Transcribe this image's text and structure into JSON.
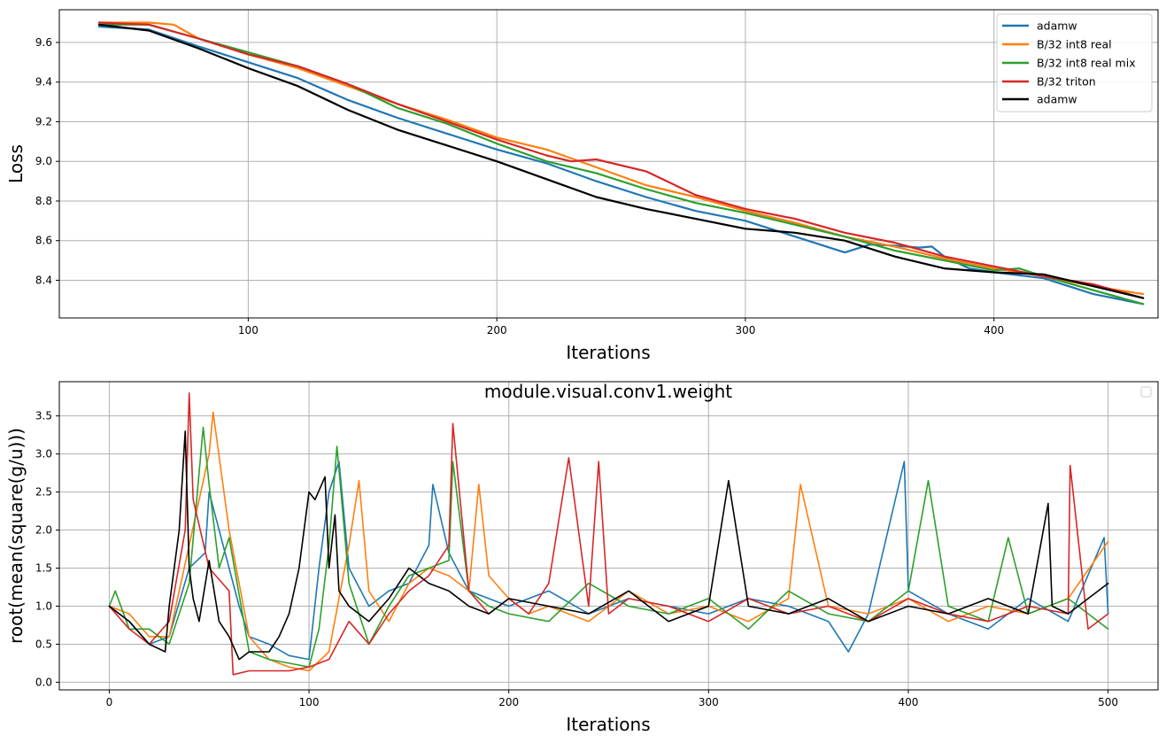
{
  "chart_data": [
    {
      "type": "line",
      "title": "",
      "xlabel": "Iterations",
      "ylabel": "Loss",
      "xlim": [
        24,
        466
      ],
      "ylim": [
        8.21,
        9.765
      ],
      "xticks": [
        100,
        200,
        300,
        400
      ],
      "yticks": [
        8.4,
        8.6,
        8.8,
        9.0,
        9.2,
        9.4,
        9.6
      ],
      "xtick_labels": [
        "100",
        "200",
        "300",
        "400"
      ],
      "ytick_labels": [
        "8.4",
        "8.6",
        "8.8",
        "9.0",
        "9.2",
        "9.4",
        "9.6"
      ],
      "grid": true,
      "legend": "top-right",
      "series": [
        {
          "name": "adamw",
          "color": "#1f77b4",
          "x": [
            40,
            60,
            80,
            100,
            120,
            140,
            160,
            180,
            200,
            220,
            240,
            260,
            280,
            300,
            320,
            340,
            350,
            360,
            370,
            375,
            380,
            390,
            400,
            420,
            440,
            460
          ],
          "y": [
            9.68,
            9.665,
            9.58,
            9.5,
            9.42,
            9.31,
            9.22,
            9.14,
            9.06,
            8.99,
            8.9,
            8.82,
            8.75,
            8.7,
            8.62,
            8.54,
            8.58,
            8.575,
            8.565,
            8.57,
            8.52,
            8.46,
            8.44,
            8.41,
            8.33,
            8.28
          ]
        },
        {
          "name": "B/32 int8 real",
          "color": "#ff7f0e",
          "x": [
            40,
            60,
            70,
            80,
            100,
            120,
            140,
            160,
            180,
            200,
            220,
            240,
            260,
            280,
            300,
            320,
            340,
            360,
            380,
            400,
            420,
            440,
            460
          ],
          "y": [
            9.7,
            9.7,
            9.69,
            9.62,
            9.54,
            9.47,
            9.38,
            9.29,
            9.21,
            9.12,
            9.06,
            8.97,
            8.88,
            8.82,
            8.75,
            8.69,
            8.62,
            8.57,
            8.51,
            8.46,
            8.42,
            8.37,
            8.33
          ]
        },
        {
          "name": "B/32 int8 real mix",
          "color": "#2ca02c",
          "x": [
            40,
            60,
            80,
            100,
            120,
            140,
            160,
            180,
            200,
            220,
            240,
            260,
            280,
            300,
            320,
            340,
            360,
            380,
            400,
            410,
            420,
            440,
            460
          ],
          "y": [
            9.69,
            9.69,
            9.62,
            9.55,
            9.48,
            9.39,
            9.27,
            9.19,
            9.09,
            9.0,
            8.94,
            8.86,
            8.79,
            8.74,
            8.68,
            8.62,
            8.55,
            8.5,
            8.45,
            8.46,
            8.42,
            8.35,
            8.28
          ]
        },
        {
          "name": "B/32 triton",
          "color": "#d62728",
          "x": [
            40,
            60,
            80,
            100,
            120,
            140,
            160,
            180,
            200,
            220,
            230,
            240,
            260,
            270,
            280,
            300,
            320,
            340,
            360,
            380,
            400,
            420,
            440,
            460
          ],
          "y": [
            9.7,
            9.69,
            9.62,
            9.54,
            9.48,
            9.39,
            9.29,
            9.2,
            9.11,
            9.03,
            9.0,
            9.01,
            8.95,
            8.89,
            8.83,
            8.76,
            8.71,
            8.64,
            8.59,
            8.52,
            8.47,
            8.42,
            8.38,
            8.31
          ]
        },
        {
          "name": "adamw",
          "color": "#000000",
          "x": [
            40,
            60,
            80,
            100,
            120,
            140,
            160,
            180,
            200,
            220,
            240,
            260,
            280,
            300,
            320,
            340,
            360,
            380,
            400,
            420,
            440,
            460
          ],
          "y": [
            9.69,
            9.66,
            9.57,
            9.47,
            9.38,
            9.26,
            9.16,
            9.08,
            9.0,
            8.91,
            8.82,
            8.76,
            8.71,
            8.66,
            8.64,
            8.6,
            8.52,
            8.46,
            8.44,
            8.43,
            8.37,
            8.31
          ]
        }
      ]
    },
    {
      "type": "line",
      "title": "module.visual.conv1.weight",
      "xlabel": "Iterations",
      "ylabel": "root(mean(square(g/u)))",
      "xlim": [
        -25,
        525
      ],
      "ylim": [
        -0.1,
        3.95
      ],
      "xticks": [
        0,
        100,
        200,
        300,
        400,
        500
      ],
      "yticks": [
        0.0,
        0.5,
        1.0,
        1.5,
        2.0,
        2.5,
        3.0,
        3.5
      ],
      "xtick_labels": [
        "0",
        "100",
        "200",
        "300",
        "400",
        "500"
      ],
      "ytick_labels": [
        "0.0",
        "0.5",
        "1.0",
        "1.5",
        "2.0",
        "2.5",
        "3.0",
        "3.5"
      ],
      "grid": true,
      "legend": "top-right (empty)",
      "series": [
        {
          "name": "",
          "color": "#1f77b4",
          "x": [
            0,
            10,
            20,
            30,
            40,
            48,
            50,
            55,
            60,
            65,
            70,
            80,
            90,
            100,
            105,
            110,
            115,
            120,
            130,
            140,
            150,
            160,
            162,
            170,
            180,
            190,
            200,
            220,
            240,
            260,
            280,
            300,
            320,
            340,
            360,
            370,
            380,
            398,
            400,
            420,
            440,
            460,
            480,
            498,
            500
          ],
          "y": [
            1.0,
            0.8,
            0.5,
            0.6,
            1.5,
            1.7,
            2.5,
            2.0,
            1.5,
            1.0,
            0.6,
            0.5,
            0.35,
            0.3,
            1.5,
            2.5,
            2.9,
            1.5,
            1.0,
            1.2,
            1.3,
            1.8,
            2.6,
            1.7,
            1.2,
            1.1,
            1.0,
            1.2,
            0.9,
            1.1,
            1.0,
            0.9,
            1.1,
            1.0,
            0.8,
            0.4,
            0.9,
            2.9,
            1.2,
            0.9,
            0.7,
            1.1,
            0.8,
            1.9,
            0.9
          ]
        },
        {
          "name": "",
          "color": "#ff7f0e",
          "x": [
            0,
            10,
            20,
            30,
            40,
            50,
            52,
            60,
            70,
            80,
            90,
            100,
            110,
            120,
            125,
            130,
            140,
            150,
            160,
            170,
            180,
            185,
            190,
            200,
            210,
            220,
            240,
            260,
            280,
            300,
            320,
            340,
            346,
            360,
            380,
            400,
            420,
            440,
            460,
            480,
            500
          ],
          "y": [
            1.0,
            0.9,
            0.6,
            0.6,
            1.8,
            3.0,
            3.55,
            2.0,
            0.6,
            0.3,
            0.2,
            0.15,
            0.4,
            1.8,
            2.65,
            1.2,
            0.8,
            1.3,
            1.5,
            1.4,
            1.2,
            2.6,
            1.4,
            1.1,
            0.9,
            1.0,
            0.8,
            1.2,
            0.9,
            1.0,
            0.8,
            1.1,
            2.6,
            1.0,
            0.9,
            1.1,
            0.8,
            1.0,
            0.9,
            1.1,
            1.85
          ]
        },
        {
          "name": "",
          "color": "#2ca02c",
          "x": [
            0,
            3,
            10,
            20,
            30,
            40,
            47,
            50,
            55,
            60,
            70,
            80,
            90,
            100,
            105,
            110,
            114,
            120,
            130,
            140,
            150,
            160,
            170,
            172,
            180,
            190,
            200,
            220,
            240,
            260,
            280,
            300,
            320,
            340,
            360,
            380,
            400,
            410,
            420,
            440,
            450,
            460,
            480,
            500
          ],
          "y": [
            1.0,
            1.2,
            0.7,
            0.7,
            0.5,
            1.3,
            3.35,
            2.6,
            1.5,
            1.9,
            0.4,
            0.3,
            0.25,
            0.2,
            0.7,
            1.8,
            3.1,
            1.3,
            0.5,
            1.0,
            1.4,
            1.5,
            1.6,
            2.9,
            1.2,
            1.0,
            0.9,
            0.8,
            1.3,
            1.0,
            0.9,
            1.1,
            0.7,
            1.2,
            0.9,
            0.8,
            1.2,
            2.65,
            1.0,
            0.8,
            1.9,
            0.9,
            1.1,
            0.7
          ]
        },
        {
          "name": "",
          "color": "#d62728",
          "x": [
            0,
            10,
            20,
            30,
            38,
            40,
            42,
            50,
            60,
            62,
            70,
            80,
            90,
            100,
            110,
            120,
            130,
            140,
            150,
            160,
            170,
            172,
            180,
            190,
            200,
            210,
            220,
            230,
            240,
            245,
            250,
            260,
            280,
            300,
            320,
            340,
            360,
            380,
            400,
            420,
            440,
            460,
            480,
            481,
            490,
            500
          ],
          "y": [
            1.0,
            0.7,
            0.5,
            0.8,
            2.0,
            3.8,
            2.4,
            1.5,
            1.2,
            0.1,
            0.15,
            0.15,
            0.15,
            0.2,
            0.3,
            0.8,
            0.5,
            0.9,
            1.2,
            1.4,
            1.8,
            3.4,
            1.2,
            0.9,
            1.1,
            0.9,
            1.3,
            2.95,
            1.0,
            2.9,
            0.9,
            1.1,
            1.0,
            0.8,
            1.1,
            0.9,
            1.0,
            0.8,
            1.1,
            0.9,
            0.8,
            1.0,
            0.9,
            2.85,
            0.7,
            0.9
          ]
        },
        {
          "name": "",
          "color": "#000000",
          "x": [
            0,
            10,
            20,
            28,
            30,
            35,
            38,
            40,
            42,
            45,
            50,
            55,
            60,
            65,
            70,
            80,
            85,
            90,
            95,
            100,
            103,
            108,
            110,
            113,
            115,
            120,
            130,
            140,
            150,
            160,
            170,
            180,
            190,
            200,
            220,
            240,
            260,
            280,
            300,
            310,
            320,
            340,
            360,
            380,
            400,
            420,
            440,
            460,
            470,
            472,
            480,
            490,
            500
          ],
          "y": [
            1.0,
            0.8,
            0.5,
            0.4,
            1.0,
            2.0,
            3.3,
            1.5,
            1.1,
            0.8,
            1.6,
            0.8,
            0.6,
            0.3,
            0.4,
            0.4,
            0.6,
            0.9,
            1.5,
            2.5,
            2.4,
            2.7,
            1.5,
            2.2,
            1.2,
            1.0,
            0.8,
            1.1,
            1.5,
            1.3,
            1.2,
            1.0,
            0.9,
            1.1,
            1.0,
            0.9,
            1.2,
            0.8,
            1.0,
            2.65,
            1.0,
            0.9,
            1.1,
            0.8,
            1.0,
            0.9,
            1.1,
            0.9,
            2.35,
            1.0,
            0.9,
            1.1,
            1.3
          ]
        }
      ]
    }
  ]
}
